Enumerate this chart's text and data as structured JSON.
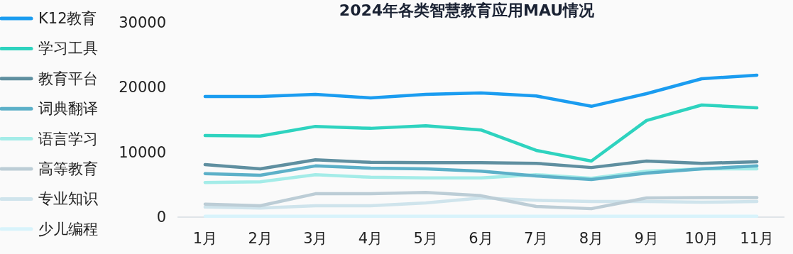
{
  "chart_data": {
    "type": "line",
    "title": "2024年各类智慧教育应用MAU情况",
    "categories": [
      "1月",
      "2月",
      "3月",
      "4月",
      "5月",
      "6月",
      "7月",
      "8月",
      "9月",
      "10月",
      "11月"
    ],
    "ylim": [
      0,
      30000
    ],
    "yticks": [
      0,
      10000,
      20000,
      30000
    ],
    "grid": false,
    "legend": "left",
    "series": [
      {
        "name": "K12教育",
        "color": "#1a9cf0",
        "values": [
          18600,
          18600,
          18950,
          18400,
          18950,
          19150,
          18700,
          17100,
          19050,
          21350,
          21900
        ]
      },
      {
        "name": "学习工具",
        "color": "#2ed3bf",
        "values": [
          12600,
          12500,
          14000,
          13700,
          14100,
          13450,
          10300,
          8650,
          14900,
          17300,
          16850
        ]
      },
      {
        "name": "教育平台",
        "color": "#5f8fa0",
        "values": [
          8100,
          7450,
          8850,
          8450,
          8400,
          8400,
          8300,
          7650,
          8650,
          8300,
          8550
        ]
      },
      {
        "name": "词典翻译",
        "color": "#5cb0c8",
        "values": [
          6700,
          6450,
          7900,
          7550,
          7450,
          7100,
          6350,
          5800,
          6800,
          7450,
          7900
        ]
      },
      {
        "name": "语言学习",
        "color": "#a4ece8",
        "values": [
          5350,
          5450,
          6550,
          6150,
          6050,
          6050,
          6550,
          6000,
          7100,
          7450,
          7450
        ]
      },
      {
        "name": "高等教育",
        "color": "#bccdd6",
        "values": [
          2000,
          1750,
          3600,
          3600,
          3800,
          3300,
          1650,
          1300,
          2950,
          3000,
          3000
        ]
      },
      {
        "name": "专业知识",
        "color": "#cfe4ec",
        "values": [
          1550,
          1400,
          1750,
          1750,
          2200,
          2950,
          2600,
          2400,
          2400,
          2300,
          2400
        ]
      },
      {
        "name": "少儿编程",
        "color": "#d8f3fb",
        "values": [
          150,
          150,
          150,
          150,
          150,
          150,
          150,
          150,
          150,
          150,
          150
        ]
      }
    ]
  }
}
